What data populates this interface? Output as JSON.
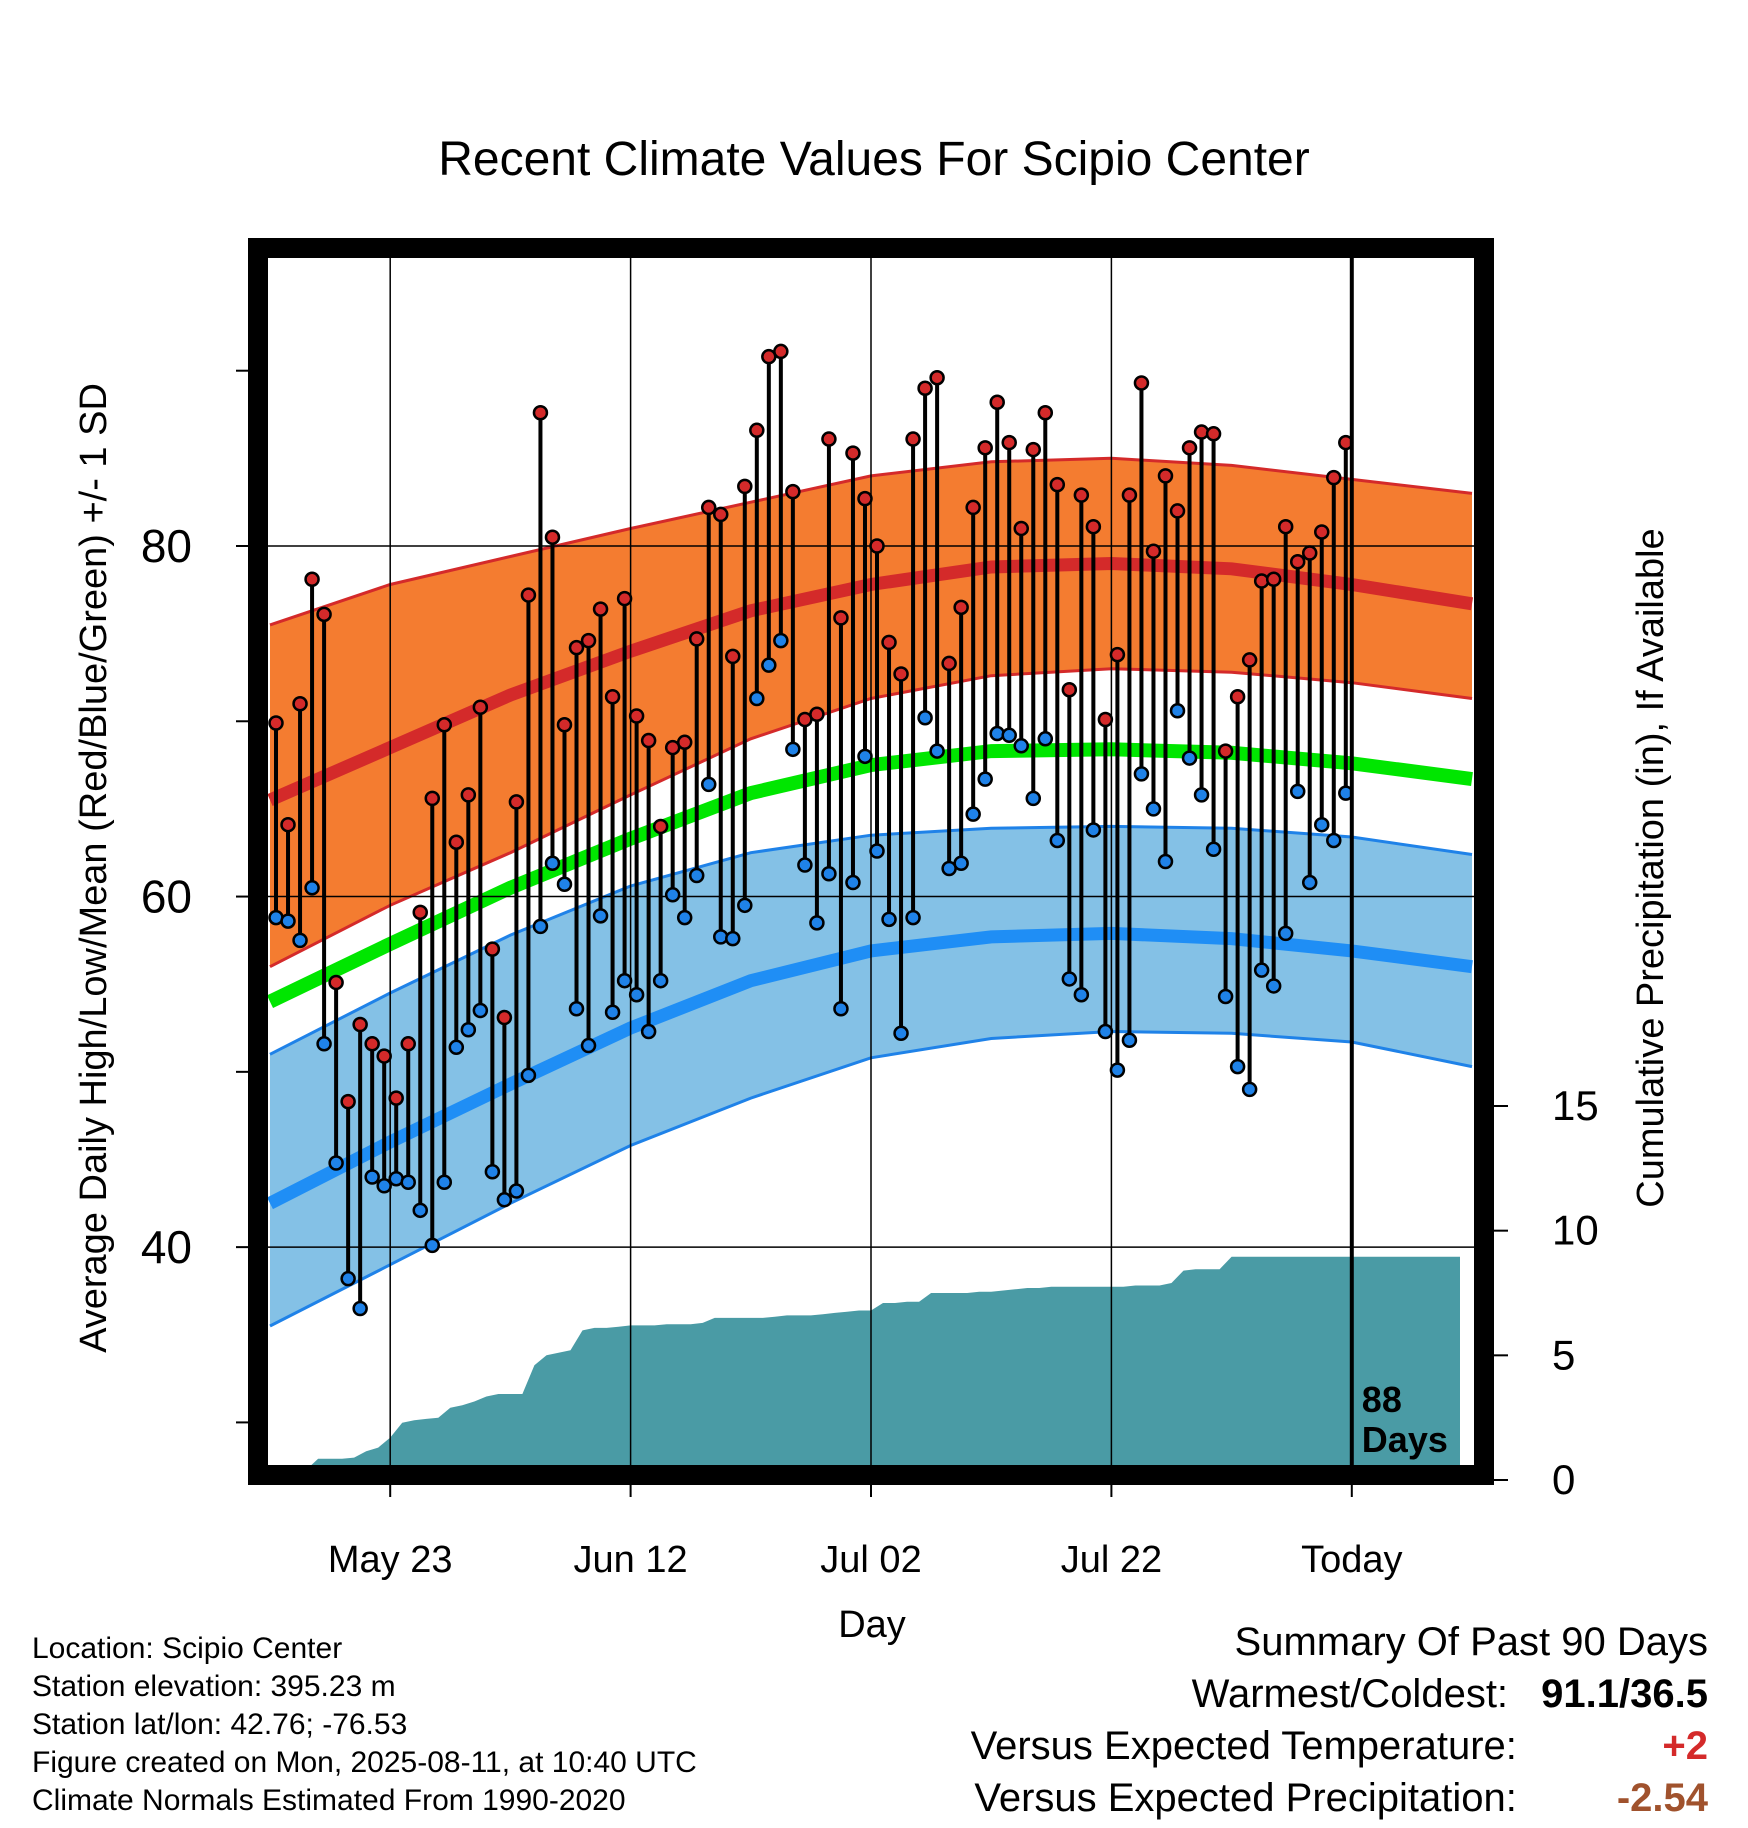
{
  "chart_data": {
    "type": "line",
    "title": "Recent Climate Values For Scipio Center",
    "xlabel": "Day",
    "ylabel": "Average Daily High/Low/Mean (Red/Blue/Green) +/- 1 SD",
    "y2label": "Cumulative Precipitation (in), If Available",
    "xticks": [
      {
        "day": 10,
        "label": "May 23"
      },
      {
        "day": 30,
        "label": "Jun 12"
      },
      {
        "day": 50,
        "label": "Jul 02"
      },
      {
        "day": 70,
        "label": "Jul 22"
      },
      {
        "day": 90,
        "label": "Today"
      }
    ],
    "x_range_days": [
      0,
      100
    ],
    "ylim": [
      27,
      97
    ],
    "yticks": [
      40,
      60,
      80
    ],
    "y2lim": [
      0,
      15
    ],
    "y2ticks": [
      0,
      5,
      10,
      15
    ],
    "grid": true,
    "today_marker": {
      "day": 90,
      "label_line1": "88",
      "label_line2": "Days"
    },
    "normals": {
      "days": [
        0,
        10,
        20,
        30,
        40,
        50,
        60,
        70,
        80,
        90,
        100
      ],
      "high_mean": [
        65.5,
        68.5,
        71.5,
        74.0,
        76.3,
        77.8,
        78.8,
        79.0,
        78.7,
        77.8,
        76.7
      ],
      "high_plus_sd": [
        75.5,
        77.8,
        79.4,
        81.0,
        82.5,
        84.0,
        84.8,
        85.0,
        84.6,
        83.8,
        83.0
      ],
      "high_minus_sd": [
        56.0,
        59.5,
        62.5,
        65.8,
        69.0,
        71.3,
        72.6,
        73.0,
        72.8,
        72.2,
        71.3
      ],
      "mean": [
        54.0,
        57.3,
        60.5,
        63.3,
        65.9,
        67.5,
        68.3,
        68.4,
        68.2,
        67.6,
        66.7
      ],
      "low_mean": [
        42.5,
        46.0,
        49.3,
        52.5,
        55.2,
        56.9,
        57.7,
        57.9,
        57.6,
        56.9,
        56.0
      ],
      "low_plus_sd": [
        51.0,
        54.5,
        57.8,
        60.6,
        62.5,
        63.5,
        63.9,
        64.0,
        63.9,
        63.4,
        62.4
      ],
      "low_minus_sd": [
        35.5,
        39.0,
        42.5,
        45.8,
        48.5,
        50.8,
        51.9,
        52.3,
        52.2,
        51.7,
        50.3
      ]
    },
    "series": [
      {
        "name": "High",
        "color": "#d42a2a",
        "values": [
          69.9,
          64.1,
          71.0,
          78.1,
          76.1,
          55.1,
          48.3,
          52.7,
          51.6,
          50.9,
          48.5,
          51.6,
          59.1,
          65.6,
          69.8,
          63.1,
          65.8,
          70.8,
          57.0,
          53.1,
          65.4,
          77.2,
          87.6,
          80.5,
          69.8,
          74.2,
          74.6,
          76.4,
          71.4,
          77.0,
          70.3,
          68.9,
          64.0,
          68.5,
          68.8,
          74.7,
          82.2,
          81.8,
          73.7,
          83.4,
          86.6,
          90.8,
          91.1,
          83.1,
          70.1,
          70.4,
          86.1,
          75.9,
          85.3,
          82.7,
          80.0,
          74.5,
          72.7,
          86.1,
          89.0,
          89.6,
          73.3,
          76.5,
          82.2,
          85.6,
          88.2,
          85.9,
          81.0,
          85.5,
          87.6,
          83.5,
          71.8,
          82.9,
          81.1,
          70.1,
          73.8,
          82.9,
          89.3,
          79.7,
          84.0,
          82.0,
          85.6,
          86.5,
          86.4,
          68.3,
          71.4,
          73.5,
          78.0,
          78.1,
          81.1,
          79.1,
          79.6,
          80.8,
          83.9,
          85.9
        ]
      },
      {
        "name": "Low",
        "color": "#1f82e8",
        "values": [
          58.8,
          58.6,
          57.5,
          60.5,
          51.6,
          44.8,
          38.2,
          36.5,
          44.0,
          43.5,
          43.9,
          43.7,
          42.1,
          40.1,
          43.7,
          51.4,
          52.4,
          53.5,
          44.3,
          42.7,
          43.2,
          49.8,
          58.3,
          61.9,
          60.7,
          53.6,
          51.5,
          58.9,
          53.4,
          55.2,
          54.4,
          52.3,
          55.2,
          60.1,
          58.8,
          61.2,
          66.4,
          57.7,
          57.6,
          59.5,
          71.3,
          73.2,
          74.6,
          68.4,
          61.8,
          58.5,
          61.3,
          53.6,
          60.8,
          68.0,
          62.6,
          58.7,
          52.2,
          58.8,
          70.2,
          68.3,
          61.6,
          61.9,
          64.7,
          66.7,
          69.3,
          69.2,
          68.6,
          65.6,
          69.0,
          63.2,
          55.3,
          54.4,
          63.8,
          52.3,
          50.1,
          51.8,
          67.0,
          65.0,
          62.0,
          70.6,
          67.9,
          65.8,
          62.7,
          54.3,
          50.3,
          49.0,
          55.8,
          54.9,
          57.9,
          66.0,
          60.8,
          64.1,
          63.2,
          65.9
        ]
      }
    ],
    "precip": {
      "color": "#4a9ba5",
      "days": [
        0,
        1,
        2,
        3,
        4,
        5,
        6,
        7,
        8,
        9,
        10,
        11,
        12,
        13,
        14,
        15,
        16,
        17,
        18,
        19,
        20,
        21,
        22,
        23,
        24,
        25,
        26,
        27,
        28,
        29,
        30,
        31,
        32,
        33,
        34,
        35,
        36,
        37,
        38,
        39,
        40,
        41,
        42,
        43,
        44,
        45,
        46,
        47,
        48,
        49,
        50,
        51,
        52,
        53,
        54,
        55,
        56,
        57,
        58,
        59,
        60,
        61,
        62,
        63,
        64,
        65,
        66,
        67,
        68,
        69,
        70,
        71,
        72,
        73,
        74,
        75,
        76,
        77,
        78,
        79,
        80,
        81,
        82,
        83,
        84,
        85,
        86,
        87,
        88,
        89,
        90,
        99
      ],
      "values": [
        0.0,
        0.05,
        0.15,
        0.4,
        0.85,
        0.85,
        0.85,
        0.9,
        1.15,
        1.3,
        1.7,
        2.3,
        2.4,
        2.45,
        2.5,
        2.9,
        3.0,
        3.15,
        3.35,
        3.45,
        3.45,
        3.45,
        4.6,
        5.0,
        5.1,
        5.2,
        6.0,
        6.1,
        6.1,
        6.15,
        6.2,
        6.2,
        6.2,
        6.25,
        6.25,
        6.25,
        6.3,
        6.5,
        6.5,
        6.5,
        6.5,
        6.5,
        6.55,
        6.6,
        6.6,
        6.6,
        6.65,
        6.7,
        6.75,
        6.8,
        6.8,
        7.1,
        7.1,
        7.15,
        7.15,
        7.5,
        7.5,
        7.5,
        7.5,
        7.55,
        7.55,
        7.6,
        7.65,
        7.7,
        7.7,
        7.75,
        7.75,
        7.75,
        7.75,
        7.75,
        7.75,
        7.75,
        7.8,
        7.8,
        7.8,
        7.9,
        8.4,
        8.45,
        8.45,
        8.45,
        8.95,
        8.95,
        8.95,
        8.95,
        8.95,
        8.95,
        8.95,
        8.95,
        8.95,
        8.95,
        8.95,
        8.95
      ]
    }
  },
  "info": {
    "location": "Location: Scipio Center",
    "elevation": "Station elevation: 395.23 m",
    "latlon": "Station lat/lon: 42.76; -76.53",
    "created": "Figure created on Mon, 2025-08-11, at 10:40 UTC",
    "normals": "Climate Normals Estimated From 1990-2020"
  },
  "summary": {
    "title": "Summary Of Past 90 Days",
    "warm_cold_label": "Warmest/Coldest:",
    "warm_cold_value": "91.1/36.5",
    "temp_label": "Versus Expected Temperature:",
    "temp_value": "+2",
    "temp_color": "#d42a2a",
    "precip_label": "Versus Expected Precipitation:",
    "precip_value": "-2.54",
    "precip_color": "#a0522d"
  }
}
